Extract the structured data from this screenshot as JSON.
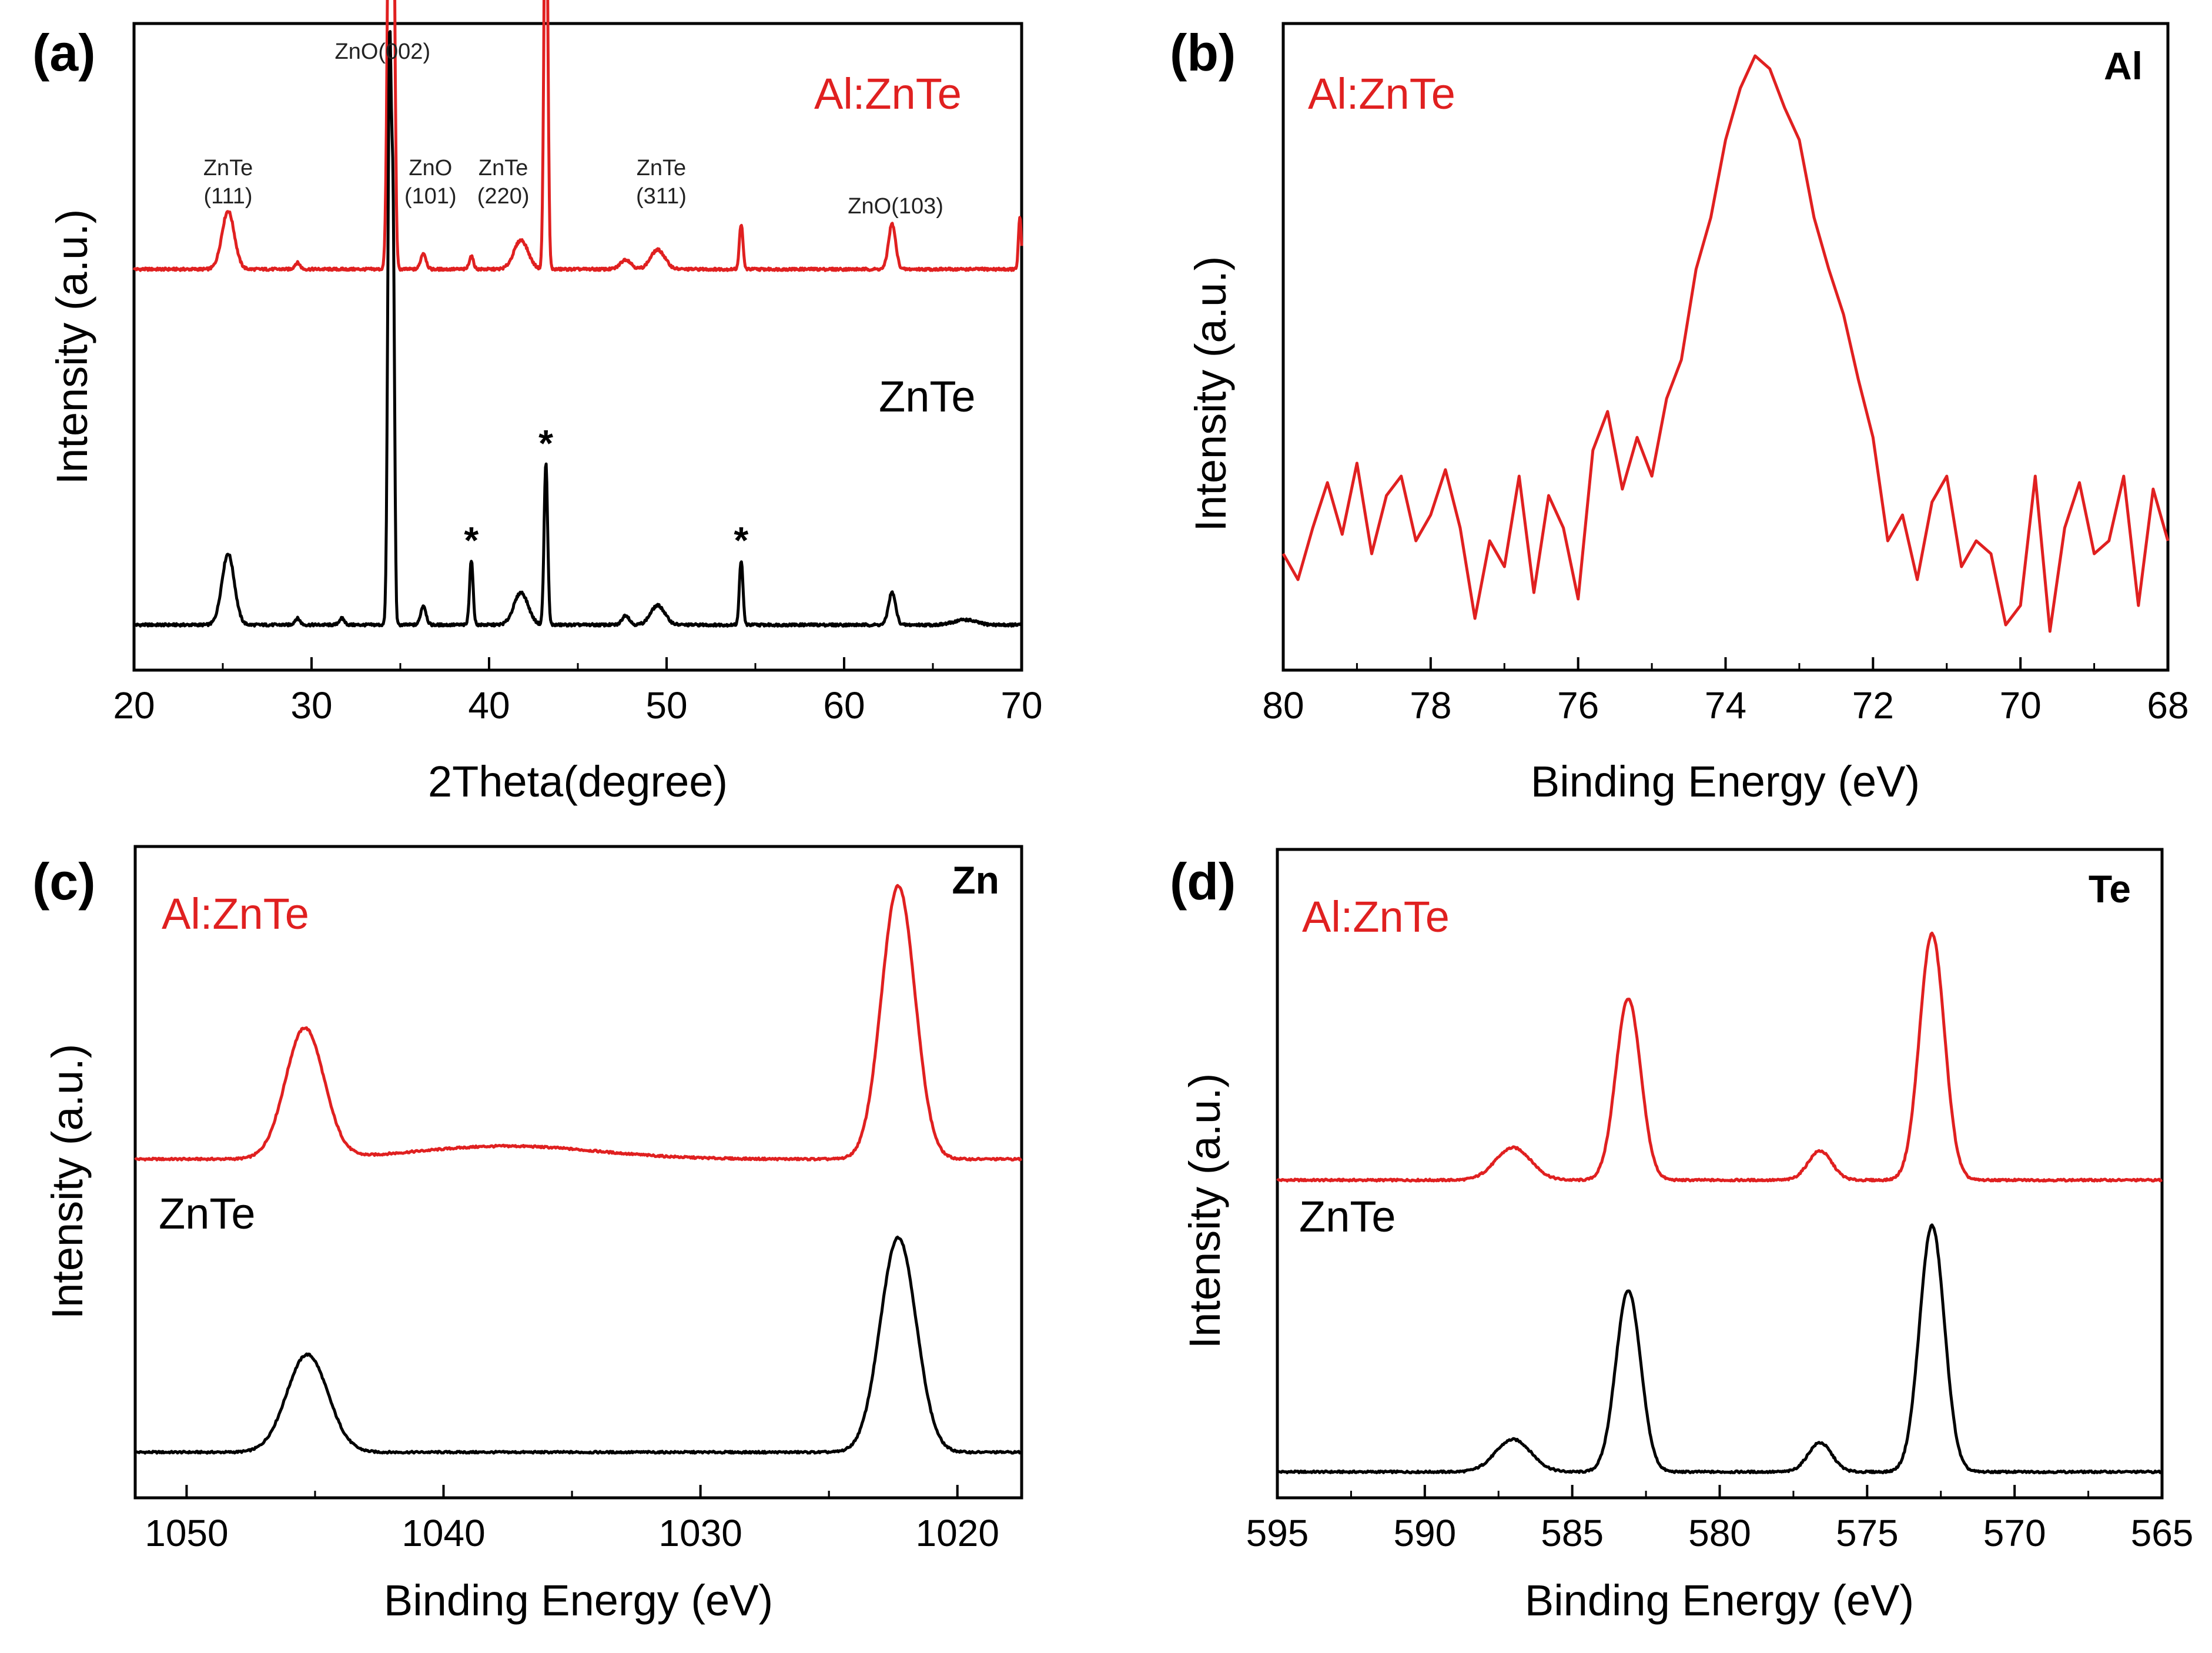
{
  "colors": {
    "red": "#e02020",
    "black": "#000000"
  },
  "chart_data": [
    {
      "panel": "(a)",
      "type": "line",
      "xlabel": "2Theta(degree)",
      "ylabel": "Intensity (a.u.)",
      "xlim": [
        20,
        70
      ],
      "x_ticks": [
        "20",
        "30",
        "40",
        "50",
        "60",
        "70"
      ],
      "series": [
        {
          "name": "Al:ZnTe",
          "color": "#e02020",
          "baseline": 0.62,
          "peaks": [
            [
              25.3,
              0.09,
              0.35
            ],
            [
              29.2,
              0.01,
              0.15
            ],
            [
              34.4,
              0.73,
              0.12
            ],
            [
              34.6,
              0.55,
              0.1
            ],
            [
              36.3,
              0.025,
              0.15
            ],
            [
              39.0,
              0.02,
              0.12
            ],
            [
              41.8,
              0.045,
              0.4
            ],
            [
              43.2,
              0.72,
              0.1
            ],
            [
              47.7,
              0.015,
              0.3
            ],
            [
              49.5,
              0.03,
              0.4
            ],
            [
              54.2,
              0.07,
              0.1
            ],
            [
              62.7,
              0.07,
              0.2
            ],
            [
              69.9,
              0.08,
              0.08
            ]
          ]
        },
        {
          "name": "ZnTe",
          "color": "#000000",
          "baseline": 0.07,
          "peaks": [
            [
              25.3,
              0.11,
              0.35
            ],
            [
              29.2,
              0.01,
              0.15
            ],
            [
              31.7,
              0.01,
              0.15
            ],
            [
              34.4,
              0.9,
              0.1
            ],
            [
              34.6,
              0.55,
              0.08
            ],
            [
              36.3,
              0.03,
              0.15
            ],
            [
              39.0,
              0.1,
              0.1
            ],
            [
              41.8,
              0.05,
              0.4
            ],
            [
              43.2,
              0.25,
              0.1
            ],
            [
              47.7,
              0.015,
              0.2
            ],
            [
              49.5,
              0.03,
              0.4
            ],
            [
              54.2,
              0.1,
              0.1
            ],
            [
              62.7,
              0.05,
              0.2
            ],
            [
              66.8,
              0.008,
              0.6
            ]
          ]
        }
      ],
      "series_labels": [
        "Al:ZnTe",
        "ZnTe"
      ],
      "annotations": [
        {
          "x": 25.3,
          "lines": [
            "ZnTe",
            "(111)"
          ]
        },
        {
          "x": 34.0,
          "lines": [
            "ZnO(002)"
          ]
        },
        {
          "x": 36.7,
          "lines": [
            "ZnO",
            "(101)"
          ]
        },
        {
          "x": 40.8,
          "lines": [
            "ZnTe",
            "(220)"
          ]
        },
        {
          "x": 49.7,
          "lines": [
            "ZnTe",
            "(311)"
          ]
        },
        {
          "x": 62.9,
          "lines": [
            "ZnO(103)"
          ]
        }
      ],
      "markers": [
        {
          "x": 39.0,
          "text": "*"
        },
        {
          "x": 43.2,
          "text": "*"
        },
        {
          "x": 54.2,
          "text": "*"
        }
      ]
    },
    {
      "panel": "(b)",
      "type": "line",
      "element": "Al",
      "xlabel": "Binding Energy (eV)",
      "ylabel": "Intensity (a.u.)",
      "xlim": [
        80,
        68
      ],
      "x_ticks": [
        "80",
        "78",
        "76",
        "74",
        "72",
        "70",
        "68"
      ],
      "series_labels": [
        "Al:ZnTe"
      ],
      "series": [
        {
          "name": "Al:ZnTe",
          "color": "#e02020",
          "x": [
            80.0,
            79.8,
            79.6,
            79.4,
            79.2,
            79.0,
            78.8,
            78.6,
            78.4,
            78.2,
            78.0,
            77.8,
            77.6,
            77.4,
            77.2,
            77.0,
            76.8,
            76.6,
            76.4,
            76.2,
            76.0,
            75.8,
            75.6,
            75.4,
            75.2,
            75.0,
            74.8,
            74.6,
            74.4,
            74.2,
            74.0,
            73.8,
            73.6,
            73.4,
            73.2,
            73.0,
            72.8,
            72.6,
            72.4,
            72.2,
            72.0,
            71.8,
            71.6,
            71.4,
            71.2,
            71.0,
            70.8,
            70.6,
            70.4,
            70.2,
            70.0,
            69.8,
            69.6,
            69.4,
            69.2,
            69.0,
            68.8,
            68.6,
            68.4,
            68.2,
            68.0
          ],
          "y": [
            0.18,
            0.14,
            0.22,
            0.29,
            0.21,
            0.32,
            0.18,
            0.27,
            0.3,
            0.2,
            0.24,
            0.31,
            0.22,
            0.08,
            0.2,
            0.16,
            0.3,
            0.12,
            0.27,
            0.22,
            0.11,
            0.34,
            0.4,
            0.28,
            0.36,
            0.3,
            0.42,
            0.48,
            0.62,
            0.7,
            0.82,
            0.9,
            0.95,
            0.93,
            0.87,
            0.82,
            0.7,
            0.62,
            0.55,
            0.45,
            0.36,
            0.2,
            0.24,
            0.14,
            0.26,
            0.3,
            0.16,
            0.2,
            0.18,
            0.07,
            0.1,
            0.3,
            0.06,
            0.22,
            0.29,
            0.18,
            0.2,
            0.3,
            0.1,
            0.28,
            0.2
          ]
        }
      ]
    },
    {
      "panel": "(c)",
      "type": "line",
      "element": "Zn",
      "xlabel": "Binding Energy (eV)",
      "ylabel": "Intensity (a.u.)",
      "xlim": [
        1052,
        1017.5
      ],
      "x_ticks": [
        "1050",
        "1040",
        "1030",
        "1020"
      ],
      "series_labels": [
        "Al:ZnTe",
        "ZnTe"
      ],
      "series": [
        {
          "name": "Al:ZnTe",
          "color": "#e02020",
          "baseline": 0.52,
          "peaks": [
            [
              1045.4,
              0.2,
              0.75
            ],
            [
              1037.5,
              0.02,
              3.5
            ],
            [
              1022.3,
              0.42,
              0.65
            ]
          ]
        },
        {
          "name": "ZnTe",
          "color": "#000000",
          "baseline": 0.07,
          "peaks": [
            [
              1045.3,
              0.15,
              0.8
            ],
            [
              1022.3,
              0.33,
              0.7
            ]
          ]
        }
      ]
    },
    {
      "panel": "(d)",
      "type": "line",
      "element": "Te",
      "xlabel": "Binding Energy (eV)",
      "ylabel": "Intensity (a.u.)",
      "xlim": [
        595,
        565
      ],
      "x_ticks": [
        "595",
        "590",
        "585",
        "580",
        "575",
        "570",
        "565"
      ],
      "series_labels": [
        "Al:ZnTe",
        "ZnTe"
      ],
      "series": [
        {
          "name": "Al:ZnTe",
          "color": "#e02020",
          "baseline": 0.49,
          "peaks": [
            [
              587.0,
              0.05,
              0.6
            ],
            [
              583.1,
              0.28,
              0.42
            ],
            [
              576.6,
              0.045,
              0.4
            ],
            [
              572.8,
              0.38,
              0.42
            ]
          ]
        },
        {
          "name": "ZnTe",
          "color": "#000000",
          "baseline": 0.04,
          "peaks": [
            [
              587.0,
              0.05,
              0.6
            ],
            [
              583.1,
              0.28,
              0.42
            ],
            [
              576.6,
              0.045,
              0.4
            ],
            [
              572.8,
              0.38,
              0.42
            ]
          ]
        }
      ]
    }
  ]
}
